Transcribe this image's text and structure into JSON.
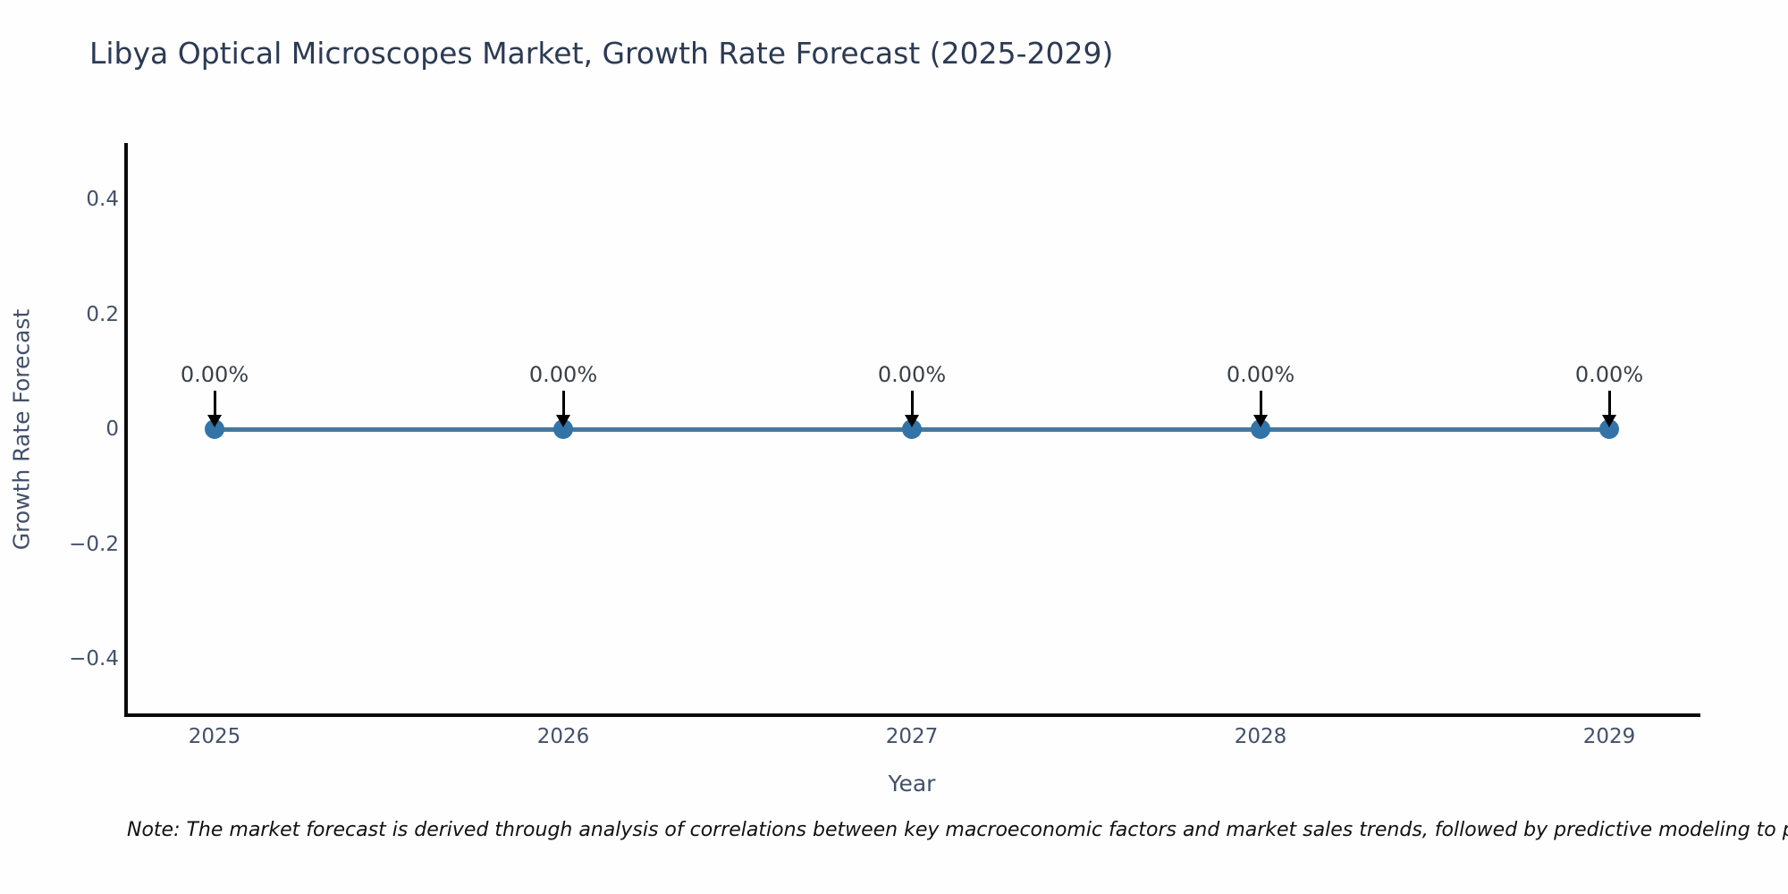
{
  "header": {
    "title": "Libya Optical Microscopes Market, Growth Rate Forecast (2025-2029)",
    "title_color": "#2c3a54"
  },
  "chart_data": {
    "type": "line",
    "title": "Libya Optical Microscopes Market, Growth Rate Forecast (2025-2029)",
    "xlabel": "Year",
    "ylabel": "Growth Rate Forecast",
    "x": [
      "2025",
      "2026",
      "2027",
      "2028",
      "2029"
    ],
    "series": [
      {
        "name": "Growth Rate Forecast",
        "values": [
          0,
          0,
          0,
          0,
          0
        ]
      }
    ],
    "point_labels": [
      "0.00%",
      "0.00%",
      "0.00%",
      "0.00%",
      "0.00%"
    ],
    "yticks": [
      {
        "value": 0.4,
        "label": "0.4"
      },
      {
        "value": 0.2,
        "label": "0.2"
      },
      {
        "value": 0,
        "label": "0"
      },
      {
        "value": -0.2,
        "label": "−0.2"
      },
      {
        "value": -0.4,
        "label": "−0.4"
      }
    ],
    "ylim": [
      -0.5,
      0.5
    ],
    "grid": false,
    "legend_position": "none",
    "colors": {
      "line": "#45789f",
      "marker": "#3274a8",
      "annotation_text": "#3a4049",
      "arrow": "#000000",
      "axis": "#0a0a0a",
      "tick_text": "#42506a"
    }
  },
  "footnote": {
    "text": "Note: The market forecast is derived through analysis of correlations between key macroeconomic factors and market sales trends, followed by predictive modeling to project future sales."
  }
}
